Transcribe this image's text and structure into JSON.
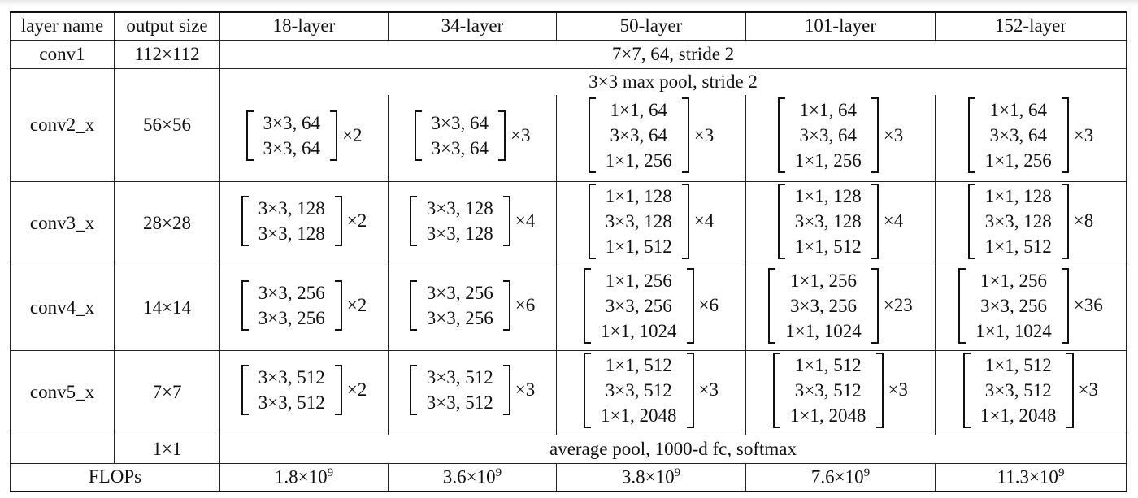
{
  "header": [
    "layer name",
    "output size",
    "18-layer",
    "34-layer",
    "50-layer",
    "101-layer",
    "152-layer"
  ],
  "conv1": {
    "name": "conv1",
    "size": "112×112",
    "spec": "7×7, 64, stride 2"
  },
  "conv2": {
    "name": "conv2_x",
    "size": "56×56",
    "pool": "3×3 max pool, stride 2",
    "blocks": [
      {
        "rows": [
          "3×3, 64",
          "3×3, 64"
        ],
        "rep": "×2"
      },
      {
        "rows": [
          "3×3, 64",
          "3×3, 64"
        ],
        "rep": "×3"
      },
      {
        "rows": [
          "1×1, 64",
          "3×3, 64",
          "1×1, 256"
        ],
        "rep": "×3"
      },
      {
        "rows": [
          "1×1, 64",
          "3×3, 64",
          "1×1, 256"
        ],
        "rep": "×3"
      },
      {
        "rows": [
          "1×1, 64",
          "3×3, 64",
          "1×1, 256"
        ],
        "rep": "×3"
      }
    ]
  },
  "conv3": {
    "name": "conv3_x",
    "size": "28×28",
    "blocks": [
      {
        "rows": [
          "3×3, 128",
          "3×3, 128"
        ],
        "rep": "×2"
      },
      {
        "rows": [
          "3×3, 128",
          "3×3, 128"
        ],
        "rep": "×4"
      },
      {
        "rows": [
          "1×1, 128",
          "3×3, 128",
          "1×1, 512"
        ],
        "rep": "×4"
      },
      {
        "rows": [
          "1×1, 128",
          "3×3, 128",
          "1×1, 512"
        ],
        "rep": "×4"
      },
      {
        "rows": [
          "1×1, 128",
          "3×3, 128",
          "1×1, 512"
        ],
        "rep": "×8"
      }
    ]
  },
  "conv4": {
    "name": "conv4_x",
    "size": "14×14",
    "blocks": [
      {
        "rows": [
          "3×3, 256",
          "3×3, 256"
        ],
        "rep": "×2"
      },
      {
        "rows": [
          "3×3, 256",
          "3×3, 256"
        ],
        "rep": "×6"
      },
      {
        "rows": [
          "1×1, 256",
          "3×3, 256",
          "1×1, 1024"
        ],
        "rep": "×6"
      },
      {
        "rows": [
          "1×1, 256",
          "3×3, 256",
          "1×1, 1024"
        ],
        "rep": "×23"
      },
      {
        "rows": [
          "1×1, 256",
          "3×3, 256",
          "1×1, 1024"
        ],
        "rep": "×36"
      }
    ]
  },
  "conv5": {
    "name": "conv5_x",
    "size": "7×7",
    "blocks": [
      {
        "rows": [
          "3×3, 512",
          "3×3, 512"
        ],
        "rep": "×2"
      },
      {
        "rows": [
          "3×3, 512",
          "3×3, 512"
        ],
        "rep": "×3"
      },
      {
        "rows": [
          "1×1, 512",
          "3×3, 512",
          "1×1, 2048"
        ],
        "rep": "×3"
      },
      {
        "rows": [
          "1×1, 512",
          "3×3, 512",
          "1×1, 2048"
        ],
        "rep": "×3"
      },
      {
        "rows": [
          "1×1, 512",
          "3×3, 512",
          "1×1, 2048"
        ],
        "rep": "×3"
      }
    ]
  },
  "final": {
    "name": "",
    "size": "1×1",
    "spec": "average pool, 1000-d fc, softmax"
  },
  "flops": {
    "label": "FLOPs",
    "values": [
      {
        "mant": "1.8×10",
        "exp": "9"
      },
      {
        "mant": "3.6×10",
        "exp": "9"
      },
      {
        "mant": "3.8×10",
        "exp": "9"
      },
      {
        "mant": "7.6×10",
        "exp": "9"
      },
      {
        "mant": "11.3×10",
        "exp": "9"
      }
    ]
  }
}
